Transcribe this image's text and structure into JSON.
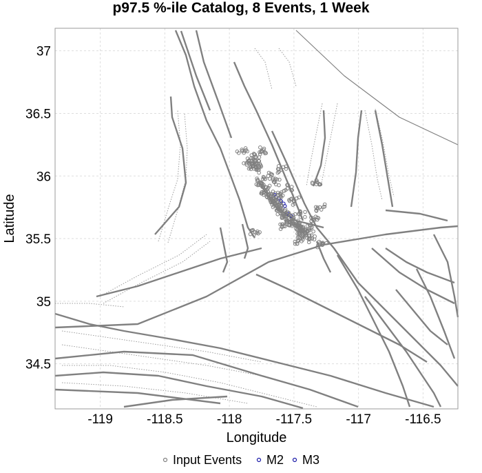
{
  "title": "p97.5 %-ile Catalog, 8 Events, 1 Week",
  "colors": {
    "fault": "#808080",
    "grid": "#dddddd",
    "input": "#808080",
    "m2": "#1a1aa8",
    "m3": "#1a1aa8"
  },
  "chart_data": {
    "type": "scatter",
    "xlabel": "Longitude",
    "ylabel": "Latitude",
    "xlim": [
      -119.35,
      -116.23
    ],
    "ylim": [
      34.14,
      37.18
    ],
    "grid": true,
    "legend_position": "bottom",
    "xticks": [
      -119,
      -118.5,
      -118,
      -117.5,
      -117,
      -116.5
    ],
    "xtick_labels": [
      "-119",
      "-118.5",
      "-118",
      "-117.5",
      "-117",
      "-116.5"
    ],
    "yticks": [
      34.5,
      35,
      35.5,
      36,
      36.5,
      37
    ],
    "ytick_labels": [
      "34.5",
      "35",
      "35.5",
      "36",
      "36.5",
      "37"
    ],
    "series": [
      {
        "name": "Input Events",
        "marker": "hollow-circle",
        "x": [
          -117.85,
          -117.83,
          -117.82,
          -117.8,
          -117.79,
          -117.78,
          -117.76,
          -117.74,
          -117.72,
          -117.7,
          -117.68,
          -117.66,
          -117.64,
          -117.62,
          -117.6,
          -117.58,
          -117.56,
          -117.54,
          -117.52,
          -117.5,
          -117.48,
          -117.46,
          -117.44,
          -117.42,
          -117.4,
          -117.38,
          -117.45,
          -117.55,
          -117.65,
          -117.5,
          -117.35,
          -117.3,
          -117.32,
          -117.6,
          -117.7,
          -117.9,
          -117.75,
          -117.28,
          -117.36,
          -117.44,
          -117.8,
          -117.47,
          -117.58,
          -117.62
        ],
        "y": [
          36.12,
          36.1,
          36.08,
          36.15,
          36.05,
          36.1,
          35.95,
          35.92,
          35.88,
          35.85,
          35.82,
          35.8,
          35.78,
          35.75,
          35.72,
          35.7,
          35.68,
          35.66,
          35.64,
          35.62,
          35.6,
          35.58,
          35.57,
          35.55,
          35.56,
          35.58,
          35.7,
          35.9,
          35.95,
          35.8,
          35.65,
          35.75,
          35.95,
          36.05,
          36.0,
          36.2,
          36.2,
          35.45,
          35.5,
          35.52,
          35.55,
          35.48,
          35.6,
          35.85
        ]
      },
      {
        "name": "M2",
        "marker": "hollow-circle",
        "x": [
          -117.65,
          -117.62,
          -117.58,
          -117.55
        ],
        "y": [
          35.85,
          35.82,
          35.78,
          35.7
        ]
      },
      {
        "name": "M3",
        "marker": "hollow-circle",
        "x": [
          -117.6,
          -117.57,
          -117.52,
          -117.66
        ],
        "y": [
          35.8,
          35.76,
          35.68,
          35.84
        ]
      }
    ]
  },
  "legend": [
    {
      "label": "Input Events",
      "color": "#808080"
    },
    {
      "label": "M2",
      "color": "#1a1aa8"
    },
    {
      "label": "M3",
      "color": "#1a1aa8"
    }
  ]
}
